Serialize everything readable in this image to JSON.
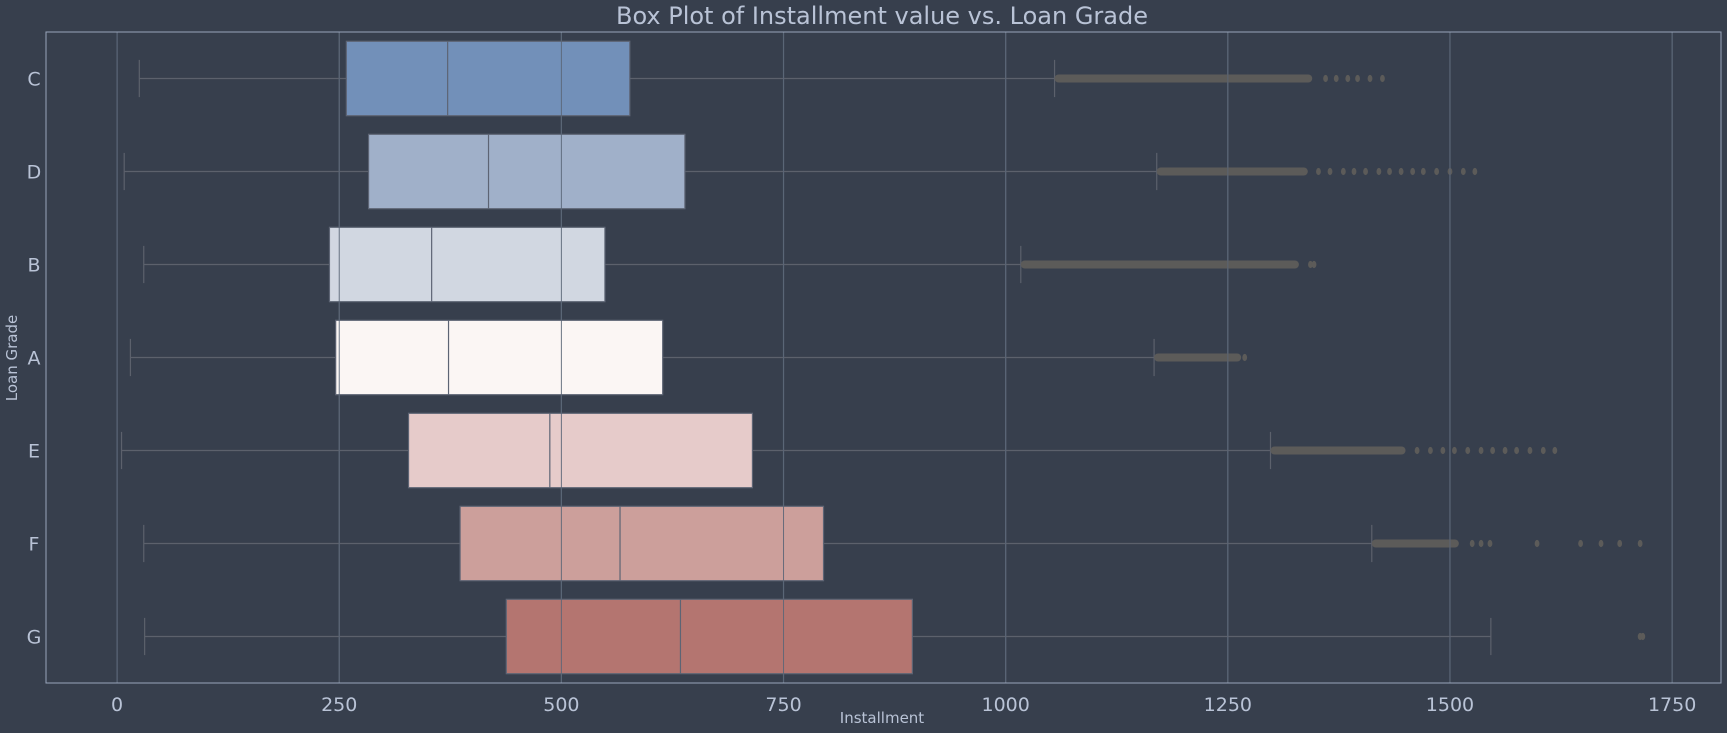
{
  "chart_data": {
    "type": "box",
    "orientation": "horizontal",
    "title": "Box Plot of Installment value vs. Loan Grade",
    "xlabel": "Installment",
    "ylabel": "Loan Grade",
    "xlim": [
      -80,
      1805
    ],
    "xticks": [
      0,
      250,
      500,
      750,
      1000,
      1250,
      1500,
      1750
    ],
    "xtick_labels": [
      "0",
      "250",
      "500",
      "750",
      "1000",
      "1250",
      "1500",
      "1750"
    ],
    "grid": true,
    "categories": [
      "C",
      "D",
      "B",
      "A",
      "E",
      "F",
      "G"
    ],
    "series": [
      {
        "name": "C",
        "color": "#7290b9",
        "whislo": 25,
        "q1": 258,
        "med": 372,
        "q3": 577,
        "whishi": 1055,
        "outlier_band": [
          1055,
          1345
        ],
        "outliers": [
          1360,
          1372,
          1385,
          1396,
          1410,
          1424
        ]
      },
      {
        "name": "D",
        "color": "#a0b0c9",
        "whislo": 8,
        "q1": 283,
        "med": 418,
        "q3": 639,
        "whishi": 1170,
        "outlier_band": [
          1170,
          1340
        ],
        "outliers": [
          1352,
          1365,
          1380,
          1392,
          1405,
          1420,
          1432,
          1445,
          1458,
          1470,
          1485,
          1500,
          1515,
          1528
        ]
      },
      {
        "name": "B",
        "color": "#d1d7e1",
        "whislo": 30,
        "q1": 239,
        "med": 354,
        "q3": 549,
        "whishi": 1017,
        "outlier_band": [
          1017,
          1330
        ],
        "outliers": [
          1343,
          1347
        ]
      },
      {
        "name": "A",
        "color": "#fbf6f4",
        "whislo": 15,
        "q1": 246,
        "med": 373,
        "q3": 614,
        "whishi": 1167,
        "outlier_band": [
          1167,
          1265
        ],
        "outliers": [
          1269
        ]
      },
      {
        "name": "E",
        "color": "#e6cbca",
        "whislo": 5,
        "q1": 328,
        "med": 487,
        "q3": 715,
        "whishi": 1298,
        "outlier_band": [
          1298,
          1450
        ],
        "outliers": [
          1463,
          1478,
          1492,
          1505,
          1520,
          1535,
          1548,
          1562,
          1575,
          1590,
          1605,
          1618
        ]
      },
      {
        "name": "F",
        "color": "#cc9f9b",
        "whislo": 30,
        "q1": 386,
        "med": 566,
        "q3": 795,
        "whishi": 1412,
        "outlier_band": [
          1412,
          1510
        ],
        "outliers": [
          1525,
          1535,
          1545,
          1598,
          1647,
          1670,
          1691,
          1714
        ]
      },
      {
        "name": "G",
        "color": "#b47570",
        "whislo": 31,
        "q1": 438,
        "med": 634,
        "q3": 895,
        "whishi": 1546,
        "outlier_band": [],
        "outliers": [
          1714,
          1717
        ]
      }
    ]
  }
}
